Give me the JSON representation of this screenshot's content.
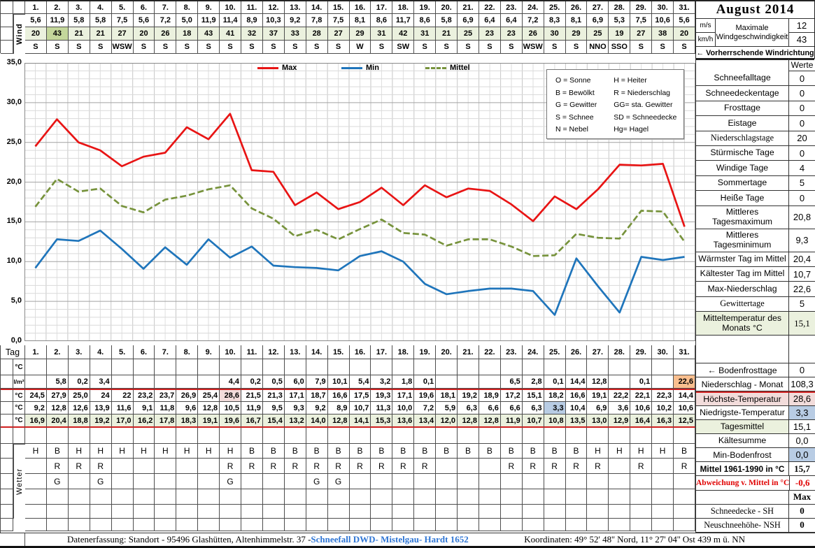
{
  "title": "August  2014",
  "wind": {
    "group_label": "Wind",
    "days": [
      "1.",
      "2.",
      "3.",
      "4.",
      "5.",
      "6.",
      "7.",
      "8.",
      "9.",
      "10.",
      "11.",
      "12.",
      "13.",
      "14.",
      "15.",
      "16.",
      "17.",
      "18.",
      "19.",
      "20.",
      "21.",
      "22.",
      "23.",
      "24.",
      "25.",
      "26.",
      "27.",
      "28.",
      "29.",
      "30.",
      "31."
    ],
    "ms": [
      "5,6",
      "11,9",
      "5,8",
      "5,8",
      "7,5",
      "5,6",
      "7,2",
      "5,0",
      "11,9",
      "11,4",
      "8,9",
      "10,3",
      "9,2",
      "7,8",
      "7,5",
      "8,1",
      "8,6",
      "11,7",
      "8,6",
      "5,8",
      "6,9",
      "6,4",
      "6,4",
      "7,2",
      "8,3",
      "8,1",
      "6,9",
      "5,3",
      "7,5",
      "10,6",
      "5,6"
    ],
    "kmh": [
      "20",
      "43",
      "21",
      "21",
      "27",
      "20",
      "26",
      "18",
      "43",
      "41",
      "32",
      "37",
      "33",
      "28",
      "27",
      "29",
      "31",
      "42",
      "31",
      "21",
      "25",
      "23",
      "23",
      "26",
      "30",
      "29",
      "25",
      "19",
      "27",
      "38",
      "20"
    ],
    "kmh_highlight_day": 2,
    "dir": [
      "S",
      "S",
      "S",
      "S",
      "WSW",
      "S",
      "S",
      "S",
      "S",
      "S",
      "S",
      "S",
      "S",
      "S",
      "S",
      "W",
      "S",
      "SW",
      "S",
      "S",
      "S",
      "S",
      "S",
      "WSW",
      "S",
      "S",
      "NNO",
      "SSO",
      "S",
      "S",
      "S"
    ],
    "unit_ms": "m/s",
    "unit_kmh": "km/h",
    "max_label_1": "Maximale",
    "max_label_2": "Windgeschwindigkeit",
    "max_ms": "12",
    "max_kmh": "43",
    "prevailing": "←  Vorherrschende Windrichtung"
  },
  "chart_data": {
    "type": "line",
    "x": [
      1,
      2,
      3,
      4,
      5,
      6,
      7,
      8,
      9,
      10,
      11,
      12,
      13,
      14,
      15,
      16,
      17,
      18,
      19,
      20,
      21,
      22,
      23,
      24,
      25,
      26,
      27,
      28,
      29,
      30,
      31
    ],
    "series": [
      {
        "name": "Max",
        "color": "#e81414",
        "dash": null,
        "values": [
          24.5,
          27.9,
          25.0,
          24,
          22,
          23.2,
          23.7,
          26.9,
          25.4,
          28.6,
          21.5,
          21.3,
          17.1,
          18.7,
          16.6,
          17.5,
          19.3,
          17.1,
          19.6,
          18.1,
          19.2,
          18.9,
          17.2,
          15.1,
          18.2,
          16.6,
          19.1,
          22.2,
          22.1,
          22.3,
          14.4
        ]
      },
      {
        "name": "Min",
        "color": "#1f75bb",
        "dash": null,
        "values": [
          9.2,
          12.8,
          12.6,
          13.9,
          11.6,
          9.1,
          11.8,
          9.6,
          12.8,
          10.5,
          11.9,
          9.5,
          9.3,
          9.2,
          8.9,
          10.7,
          11.3,
          10.0,
          7.2,
          5.9,
          6.3,
          6.6,
          6.6,
          6.3,
          3.3,
          10.4,
          6.9,
          3.6,
          10.6,
          10.2,
          10.6
        ]
      },
      {
        "name": "Mittel",
        "color": "#77933c",
        "dash": "9 4",
        "values": [
          16.9,
          20.4,
          18.8,
          19.2,
          17.0,
          16.2,
          17.8,
          18.3,
          19.1,
          19.6,
          16.7,
          15.4,
          13.2,
          14.0,
          12.8,
          14.1,
          15.3,
          13.6,
          13.4,
          12.0,
          12.8,
          12.8,
          11.9,
          10.7,
          10.8,
          13.5,
          13.0,
          12.9,
          16.4,
          16.3,
          12.5
        ]
      }
    ],
    "ylim": [
      0,
      35
    ],
    "yticks": [
      "35,0",
      "30,0",
      "25,0",
      "20,0",
      "15,0",
      "10,0",
      "5,0",
      "0,0"
    ],
    "grid": true,
    "legend_position": "top"
  },
  "weather_codes": {
    "left": [
      "O = Sonne",
      "B = Bewölkt",
      "G = Gewitter",
      "S = Schnee",
      "N = Nebel"
    ],
    "right": [
      "H = Heiter",
      "R = Niederschlag",
      "GG= sta. Gewitter",
      "SD = Schneedecke",
      "Hg= Hagel"
    ]
  },
  "stats": {
    "rows": [
      {
        "label": "",
        "value": "Werte",
        "head": true
      },
      {
        "label": "Schneefalltage",
        "value": "0"
      },
      {
        "label": "Schneedeckentage",
        "value": "0"
      },
      {
        "label": "Frosttage",
        "value": "0"
      },
      {
        "label": "Eistage",
        "value": "0"
      },
      {
        "label": "Niederschlagstage",
        "value": "20",
        "serif": true
      },
      {
        "label": "Stürmische Tage",
        "value": "0"
      },
      {
        "label": "Windige Tage",
        "value": "4"
      },
      {
        "label": "Sommertage",
        "value": "5"
      },
      {
        "label": "Heiße Tage",
        "value": "0"
      },
      {
        "label": "Mittleres Tagesmaximum",
        "value": "20,8",
        "h2": true
      },
      {
        "label": "Mittleres Tagesminimum",
        "value": "9,3",
        "h2": true
      },
      {
        "label": "Wärmster Tag im Mittel",
        "value": "20,4"
      },
      {
        "label": "Kältester Tag im Mittel",
        "value": "10,7"
      },
      {
        "label": "Max-Niederschlag",
        "value": "22,6"
      },
      {
        "label": "Gewittertage",
        "value": "5",
        "serif": true
      },
      {
        "label": "Mitteltemperatur des Monats °C",
        "value": "15,1",
        "green": true,
        "hx": true
      },
      {
        "label": "",
        "value": "",
        "fill": true
      }
    ]
  },
  "bottom": {
    "tag_label": "Tag",
    "wetter_label": "Wetter",
    "days": [
      "1.",
      "2.",
      "3.",
      "4.",
      "5.",
      "6.",
      "7.",
      "8.",
      "9.",
      "10.",
      "11.",
      "12.",
      "13.",
      "14.",
      "15.",
      "16.",
      "17.",
      "18.",
      "19.",
      "20.",
      "21.",
      "22.",
      "23.",
      "24.",
      "25.",
      "26.",
      "27.",
      "28.",
      "29.",
      "30.",
      "31."
    ],
    "rows": [
      {
        "name": "bodenfrost",
        "label": "°C",
        "values": [
          "",
          "",
          "",
          "",
          "",
          "",
          "",
          "",
          "",
          "",
          "",
          "",
          "",
          "",
          "",
          "",
          "",
          "",
          "",
          "",
          "",
          "",
          "",
          "",
          "",
          "",
          "",
          "",
          "",
          "",
          ""
        ]
      },
      {
        "name": "niederschlag",
        "label": "l/m²",
        "values": [
          "",
          "5,8",
          "0,2",
          "3,4",
          "",
          "",
          "",
          "",
          "",
          "4,4",
          "0,2",
          "0,5",
          "6,0",
          "7,9",
          "10,1",
          "5,4",
          "3,2",
          "1,8",
          "0,1",
          "",
          "",
          "",
          "6,5",
          "2,8",
          "0,1",
          "14,4",
          "12,8",
          "",
          "0,1",
          "",
          "22,6"
        ],
        "highlight": {
          "31": "orange"
        }
      },
      {
        "name": "tmax",
        "label": "°C",
        "values": [
          "24,5",
          "27,9",
          "25,0",
          "24",
          "22",
          "23,2",
          "23,7",
          "26,9",
          "25,4",
          "28,6",
          "21,5",
          "21,3",
          "17,1",
          "18,7",
          "16,6",
          "17,5",
          "19,3",
          "17,1",
          "19,6",
          "18,1",
          "19,2",
          "18,9",
          "17,2",
          "15,1",
          "18,2",
          "16,6",
          "19,1",
          "22,2",
          "22,1",
          "22,3",
          "14,4"
        ],
        "highlight": {
          "10": "pink"
        },
        "marker": "redtop"
      },
      {
        "name": "tmin",
        "label": "°C",
        "values": [
          "9,2",
          "12,8",
          "12,6",
          "13,9",
          "11,6",
          "9,1",
          "11,8",
          "9,6",
          "12,8",
          "10,5",
          "11,9",
          "9,5",
          "9,3",
          "9,2",
          "8,9",
          "10,7",
          "11,3",
          "10,0",
          "7,2",
          "5,9",
          "6,3",
          "6,6",
          "6,6",
          "6,3",
          "3,3",
          "10,4",
          "6,9",
          "3,6",
          "10,6",
          "10,2",
          "10,6"
        ],
        "highlight": {
          "25": "blue"
        }
      },
      {
        "name": "tmittel",
        "label": "°C",
        "values": [
          "16,9",
          "20,4",
          "18,8",
          "19,2",
          "17,0",
          "16,2",
          "17,8",
          "18,3",
          "19,1",
          "19,6",
          "16,7",
          "15,4",
          "13,2",
          "14,0",
          "12,8",
          "14,1",
          "15,3",
          "13,6",
          "13,4",
          "12,0",
          "12,8",
          "12,8",
          "11,9",
          "10,7",
          "10,8",
          "13,5",
          "13,0",
          "12,9",
          "16,4",
          "16,3",
          "12,5"
        ],
        "rowbg": "green",
        "marker": "redbot"
      },
      {
        "name": "empty1",
        "label": "",
        "values": [
          "",
          "",
          "",
          "",
          "",
          "",
          "",
          "",
          "",
          "",
          "",
          "",
          "",
          "",
          "",
          "",
          "",
          "",
          "",
          "",
          "",
          "",
          "",
          "",
          "",
          "",
          "",
          "",
          "",
          "",
          ""
        ]
      },
      {
        "name": "sky",
        "label": "",
        "values": [
          "H",
          "B",
          "H",
          "H",
          "H",
          "H",
          "H",
          "H",
          "H",
          "H",
          "B",
          "B",
          "B",
          "B",
          "B",
          "B",
          "B",
          "B",
          "B",
          "B",
          "B",
          "B",
          "B",
          "B",
          "B",
          "B",
          "H",
          "H",
          "H",
          "H",
          "B"
        ]
      },
      {
        "name": "precip",
        "label": "",
        "values": [
          "",
          "R",
          "R",
          "R",
          "",
          "",
          "",
          "",
          "",
          "R",
          "R",
          "R",
          "R",
          "R",
          "R",
          "R",
          "R",
          "R",
          "R",
          "",
          "",
          "",
          "R",
          "R",
          "R",
          "R",
          "R",
          "",
          "R",
          "",
          "R"
        ]
      },
      {
        "name": "thunder",
        "label": "",
        "values": [
          "",
          "G",
          "",
          "G",
          "",
          "",
          "",
          "",
          "",
          "G",
          "",
          "",
          "",
          "G",
          "G",
          "",
          "",
          "",
          "",
          "",
          "",
          "",
          "",
          "",
          "",
          "",
          "",
          "",
          "",
          "",
          ""
        ]
      },
      {
        "name": "empty2",
        "label": "",
        "values": [
          "",
          "",
          "",
          "",
          "",
          "",
          "",
          "",
          "",
          "",
          "",
          "",
          "",
          "",
          "",
          "",
          "",
          "",
          "",
          "",
          "",
          "",
          "",
          "",
          "",
          "",
          "",
          "",
          "",
          "",
          ""
        ]
      },
      {
        "name": "empty3",
        "label": "",
        "values": [
          "",
          "",
          "",
          "",
          "",
          "",
          "",
          "",
          "",
          "",
          "",
          "",
          "",
          "",
          "",
          "",
          "",
          "",
          "",
          "",
          "",
          "",
          "",
          "",
          "",
          "",
          "",
          "",
          "",
          "",
          ""
        ]
      },
      {
        "name": "empty4",
        "label": "",
        "values": [
          "",
          "",
          "",
          "",
          "",
          "",
          "",
          "",
          "",
          "",
          "",
          "",
          "",
          "",
          "",
          "",
          "",
          "",
          "",
          "",
          "",
          "",
          "",
          "",
          "",
          "",
          "",
          "",
          "",
          "",
          ""
        ]
      }
    ]
  },
  "side2": {
    "rows": [
      {
        "label": "",
        "value": "",
        "blank": true
      },
      {
        "label": "←  Bodenfrosttage",
        "value": "0"
      },
      {
        "label": "Niederschlag - Monat",
        "value": "108,3"
      },
      {
        "label": "Höchste-Temperatur",
        "value": "28,6",
        "lbg": "pink",
        "vbg": "pink",
        "marker": "redtop"
      },
      {
        "label": "Niedrigste-Temperatur",
        "value": "3,3",
        "vbg": "blue"
      },
      {
        "label": "Tagesmittel",
        "value": "15,1",
        "lbg": "green",
        "marker": "redbot"
      },
      {
        "label": "Kältesumme",
        "value": "0,0"
      },
      {
        "label": "Min-Bodenfrost",
        "value": "0,0",
        "vbg": "blue"
      },
      {
        "label": "Mittel 1961-1990 in °C",
        "value": "15,7",
        "bold": true,
        "vserif": true
      },
      {
        "label": "Abweichung v. Mittel in °C",
        "value": "-0,6",
        "red": true
      },
      {
        "label": "",
        "value": "Max",
        "vbold": true,
        "vserif": true
      },
      {
        "label": "Schneedecke -   SH",
        "value": "0",
        "serif": true,
        "vserif": true,
        "vbold": true
      },
      {
        "label": "Neuschneehöhe- NSH",
        "value": "0",
        "serif": true,
        "vserif": true,
        "vbold": true
      }
    ]
  },
  "footer": {
    "left": "Datenerfassung:  Standort -  95496  Glashütten, Altenhimmelstr. 37 - ",
    "link": "Schneefall DWD- Mistelgau- Hardt 1652",
    "right": "Koordinaten:  49° 52' 48'' Nord,   11° 27' 04'' Ost   439 m ü. NN"
  }
}
